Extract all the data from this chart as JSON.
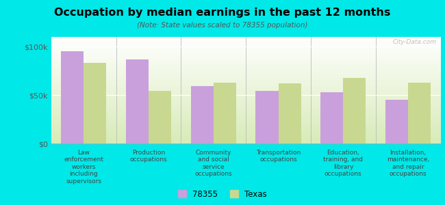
{
  "title": "Occupation by median earnings in the past 12 months",
  "subtitle": "(Note: State values scaled to 78355 population)",
  "background_color": "#00e8e8",
  "plot_bg_top": "#ffffff",
  "plot_bg_bottom": "#d8ebb8",
  "categories": [
    "Law\nenforcement\nworkers\nincluding\nsupervisors",
    "Production\noccupations",
    "Community\nand social\nservice\noccupations",
    "Transportation\noccupations",
    "Education,\ntraining, and\nlibrary\noccupations",
    "Installation,\nmaintenance,\nand repair\noccupations"
  ],
  "values_78355": [
    95000,
    87000,
    59000,
    54000,
    53000,
    45000
  ],
  "values_texas": [
    83000,
    54000,
    63000,
    62000,
    68000,
    63000
  ],
  "color_78355": "#c9a0dc",
  "color_texas": "#c8d890",
  "ylabel_ticks": [
    "$0",
    "$50k",
    "$100k"
  ],
  "ytick_vals": [
    0,
    50000,
    100000
  ],
  "ylim": [
    0,
    110000
  ],
  "legend_label_1": "78355",
  "legend_label_2": "Texas",
  "watermark": "City-Data.com"
}
